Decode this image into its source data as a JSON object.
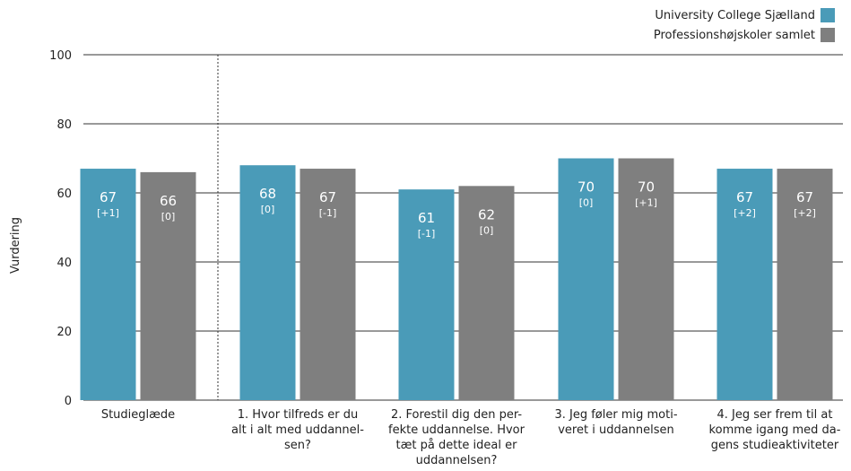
{
  "chart_data": {
    "type": "bar",
    "ylabel": "Vurdering",
    "ylim": [
      0,
      100
    ],
    "yticks": [
      0,
      20,
      40,
      60,
      80,
      100
    ],
    "grid": true,
    "legend_position": "top-right",
    "colors": {
      "series1": "#4a9bb8",
      "series2": "#7f7f7f"
    },
    "categories": [
      [
        "Studieglæde"
      ],
      [
        "1. Hvor tilfreds er du",
        "alt i alt med uddannel-",
        "sen?"
      ],
      [
        "2. Forestil dig den per-",
        "fekte uddannelse. Hvor",
        "tæt på dette ideal er",
        "uddannelsen?"
      ],
      [
        "3. Jeg føler mig moti-",
        "veret i uddannelsen"
      ],
      [
        "4. Jeg ser frem til at",
        "komme igang med da-",
        "gens studieaktiviteter"
      ]
    ],
    "series": [
      {
        "name": "University College Sjælland",
        "values": [
          67,
          68,
          61,
          70,
          67
        ],
        "labels": [
          "67",
          "68",
          "61",
          "70",
          "67"
        ],
        "changes": [
          "[+1]",
          "[0]",
          "[-1]",
          "[0]",
          "[+2]"
        ]
      },
      {
        "name": "Professionshøjskoler samlet",
        "values": [
          66,
          67,
          62,
          70,
          67
        ],
        "labels": [
          "66",
          "67",
          "62",
          "70",
          "67"
        ],
        "changes": [
          "[0]",
          "[-1]",
          "[0]",
          "[+1]",
          "[+2]"
        ]
      }
    ]
  }
}
